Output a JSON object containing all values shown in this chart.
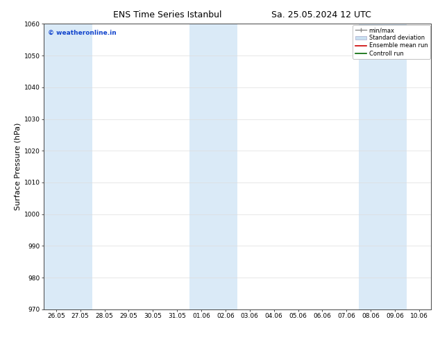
{
  "title": "ENS Time Series Istanbul",
  "subtitle": "Sa. 25.05.2024 12 UTC",
  "ylabel": "Surface Pressure (hPa)",
  "ylim": [
    970,
    1060
  ],
  "yticks": [
    970,
    980,
    990,
    1000,
    1010,
    1020,
    1030,
    1040,
    1050,
    1060
  ],
  "xtick_labels": [
    "26.05",
    "27.05",
    "28.05",
    "29.05",
    "30.05",
    "31.05",
    "01.06",
    "02.06",
    "03.06",
    "04.06",
    "05.06",
    "06.06",
    "07.06",
    "08.06",
    "09.06",
    "10.06"
  ],
  "num_xticks": 16,
  "shaded_columns": [
    0,
    1,
    6,
    7,
    13,
    14
  ],
  "shade_color": "#daeaf7",
  "watermark": "© weatheronline.in",
  "watermark_color": "#1144cc",
  "legend_items": [
    {
      "label": "min/max",
      "color": "#aaaaaa",
      "type": "line"
    },
    {
      "label": "Standard deviation",
      "color": "#c8dff0",
      "type": "fill"
    },
    {
      "label": "Ensemble mean run",
      "color": "#cc0000",
      "type": "line"
    },
    {
      "label": "Controll run",
      "color": "#006600",
      "type": "line"
    }
  ],
  "bg_color": "#ffffff",
  "plot_bg_color": "#ffffff",
  "grid_color": "#dddddd",
  "title_fontsize": 9,
  "tick_fontsize": 6.5,
  "ylabel_fontsize": 8
}
